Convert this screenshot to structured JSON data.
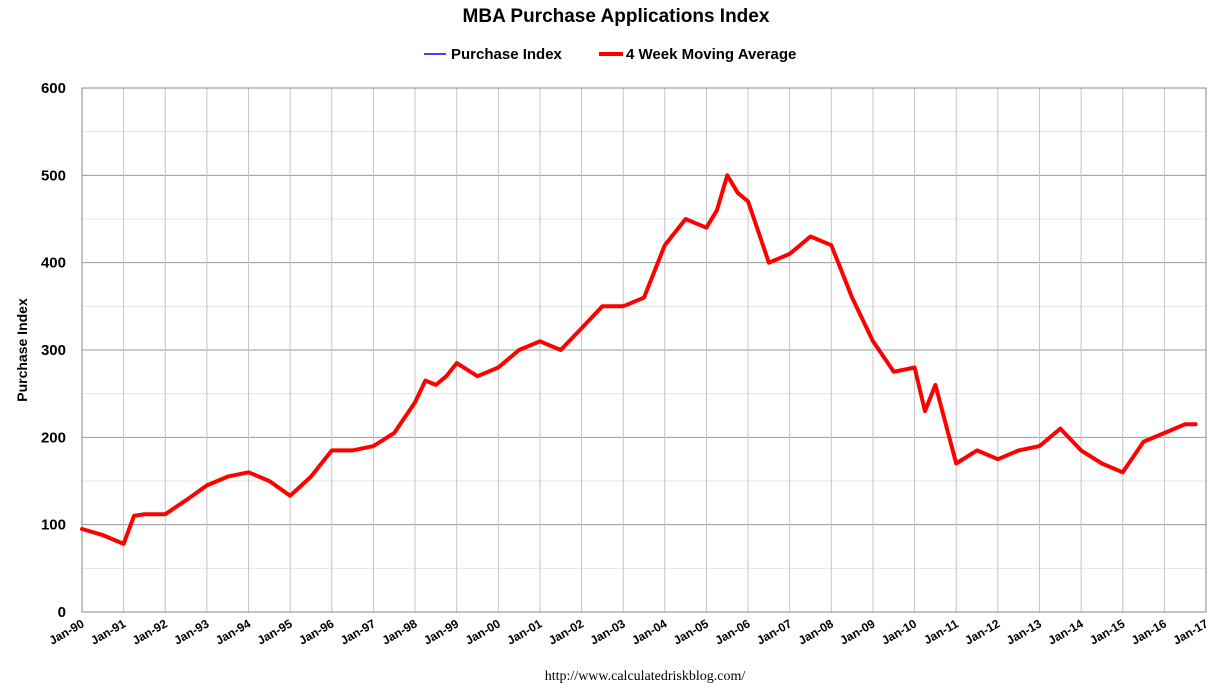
{
  "chart_data": {
    "type": "line",
    "title": "MBA Purchase Applications Index",
    "ylabel": "Purchase Index",
    "xlabel": "",
    "source": "http://www.calculatedriskblog.com/",
    "ylim": [
      0,
      600
    ],
    "yticks": [
      0,
      100,
      200,
      300,
      400,
      500,
      600
    ],
    "xlim": [
      1990,
      2017
    ],
    "xtick_labels": [
      "Jan-90",
      "Jan-91",
      "Jan-92",
      "Jan-93",
      "Jan-94",
      "Jan-95",
      "Jan-96",
      "Jan-97",
      "Jan-98",
      "Jan-99",
      "Jan-00",
      "Jan-01",
      "Jan-02",
      "Jan-03",
      "Jan-04",
      "Jan-05",
      "Jan-06",
      "Jan-07",
      "Jan-08",
      "Jan-09",
      "Jan-10",
      "Jan-11",
      "Jan-12",
      "Jan-13",
      "Jan-14",
      "Jan-15",
      "Jan-16",
      "Jan-17"
    ],
    "grid": true,
    "legend_position": "top-center",
    "x": [
      1990.0,
      1990.5,
      1991.0,
      1991.25,
      1991.5,
      1992.0,
      1992.5,
      1993.0,
      1993.5,
      1994.0,
      1994.5,
      1995.0,
      1995.5,
      1996.0,
      1996.5,
      1997.0,
      1997.5,
      1998.0,
      1998.25,
      1998.5,
      1998.75,
      1999.0,
      1999.5,
      2000.0,
      2000.5,
      2001.0,
      2001.5,
      2002.0,
      2002.5,
      2003.0,
      2003.5,
      2004.0,
      2004.5,
      2005.0,
      2005.25,
      2005.5,
      2005.75,
      2006.0,
      2006.5,
      2007.0,
      2007.5,
      2008.0,
      2008.5,
      2009.0,
      2009.5,
      2010.0,
      2010.25,
      2010.5,
      2011.0,
      2011.5,
      2012.0,
      2012.5,
      2013.0,
      2013.5,
      2014.0,
      2014.5,
      2015.0,
      2015.5,
      2016.0,
      2016.5,
      2016.75
    ],
    "series": [
      {
        "name": "Purchase Index",
        "color": "#4040ff",
        "values": [
          95,
          88,
          78,
          110,
          112,
          112,
          128,
          145,
          155,
          160,
          150,
          133,
          155,
          185,
          185,
          190,
          205,
          240,
          265,
          260,
          270,
          285,
          270,
          280,
          300,
          310,
          300,
          325,
          350,
          350,
          360,
          420,
          450,
          440,
          460,
          500,
          480,
          470,
          400,
          410,
          430,
          420,
          360,
          310,
          275,
          280,
          230,
          260,
          170,
          185,
          175,
          185,
          190,
          210,
          185,
          170,
          160,
          195,
          205,
          215,
          215
        ]
      },
      {
        "name": "4 Week Moving Average",
        "color": "#ff0000",
        "values": [
          95,
          88,
          78,
          110,
          112,
          112,
          128,
          145,
          155,
          160,
          150,
          133,
          155,
          185,
          185,
          190,
          205,
          240,
          265,
          260,
          270,
          285,
          270,
          280,
          300,
          310,
          300,
          325,
          350,
          350,
          360,
          420,
          450,
          440,
          460,
          500,
          480,
          470,
          400,
          410,
          430,
          420,
          360,
          310,
          275,
          280,
          230,
          260,
          170,
          185,
          175,
          185,
          190,
          210,
          185,
          170,
          160,
          195,
          205,
          215,
          215
        ]
      }
    ]
  }
}
